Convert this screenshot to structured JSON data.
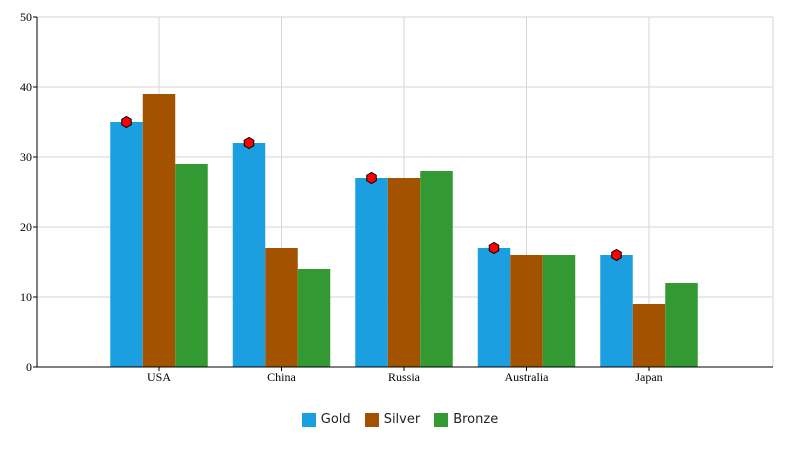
{
  "chart_data": {
    "type": "bar",
    "categories": [
      "USA",
      "China",
      "Russia",
      "Australia",
      "Japan"
    ],
    "series": [
      {
        "name": "Gold",
        "color": "#1c9fe0",
        "values": [
          35,
          32,
          27,
          17,
          16
        ]
      },
      {
        "name": "Silver",
        "color": "#a35300",
        "values": [
          39,
          17,
          27,
          16,
          9
        ]
      },
      {
        "name": "Bronze",
        "color": "#339933",
        "values": [
          29,
          14,
          28,
          16,
          12
        ]
      }
    ],
    "markers": {
      "series": "Gold",
      "shape": "hexagon",
      "color": "#ff0000"
    },
    "ylim": [
      0,
      50
    ],
    "yticks": [
      0,
      10,
      20,
      30,
      40,
      50
    ],
    "grid": true,
    "legend_position": "bottom-center",
    "title": "",
    "xlabel": "",
    "ylabel": ""
  }
}
